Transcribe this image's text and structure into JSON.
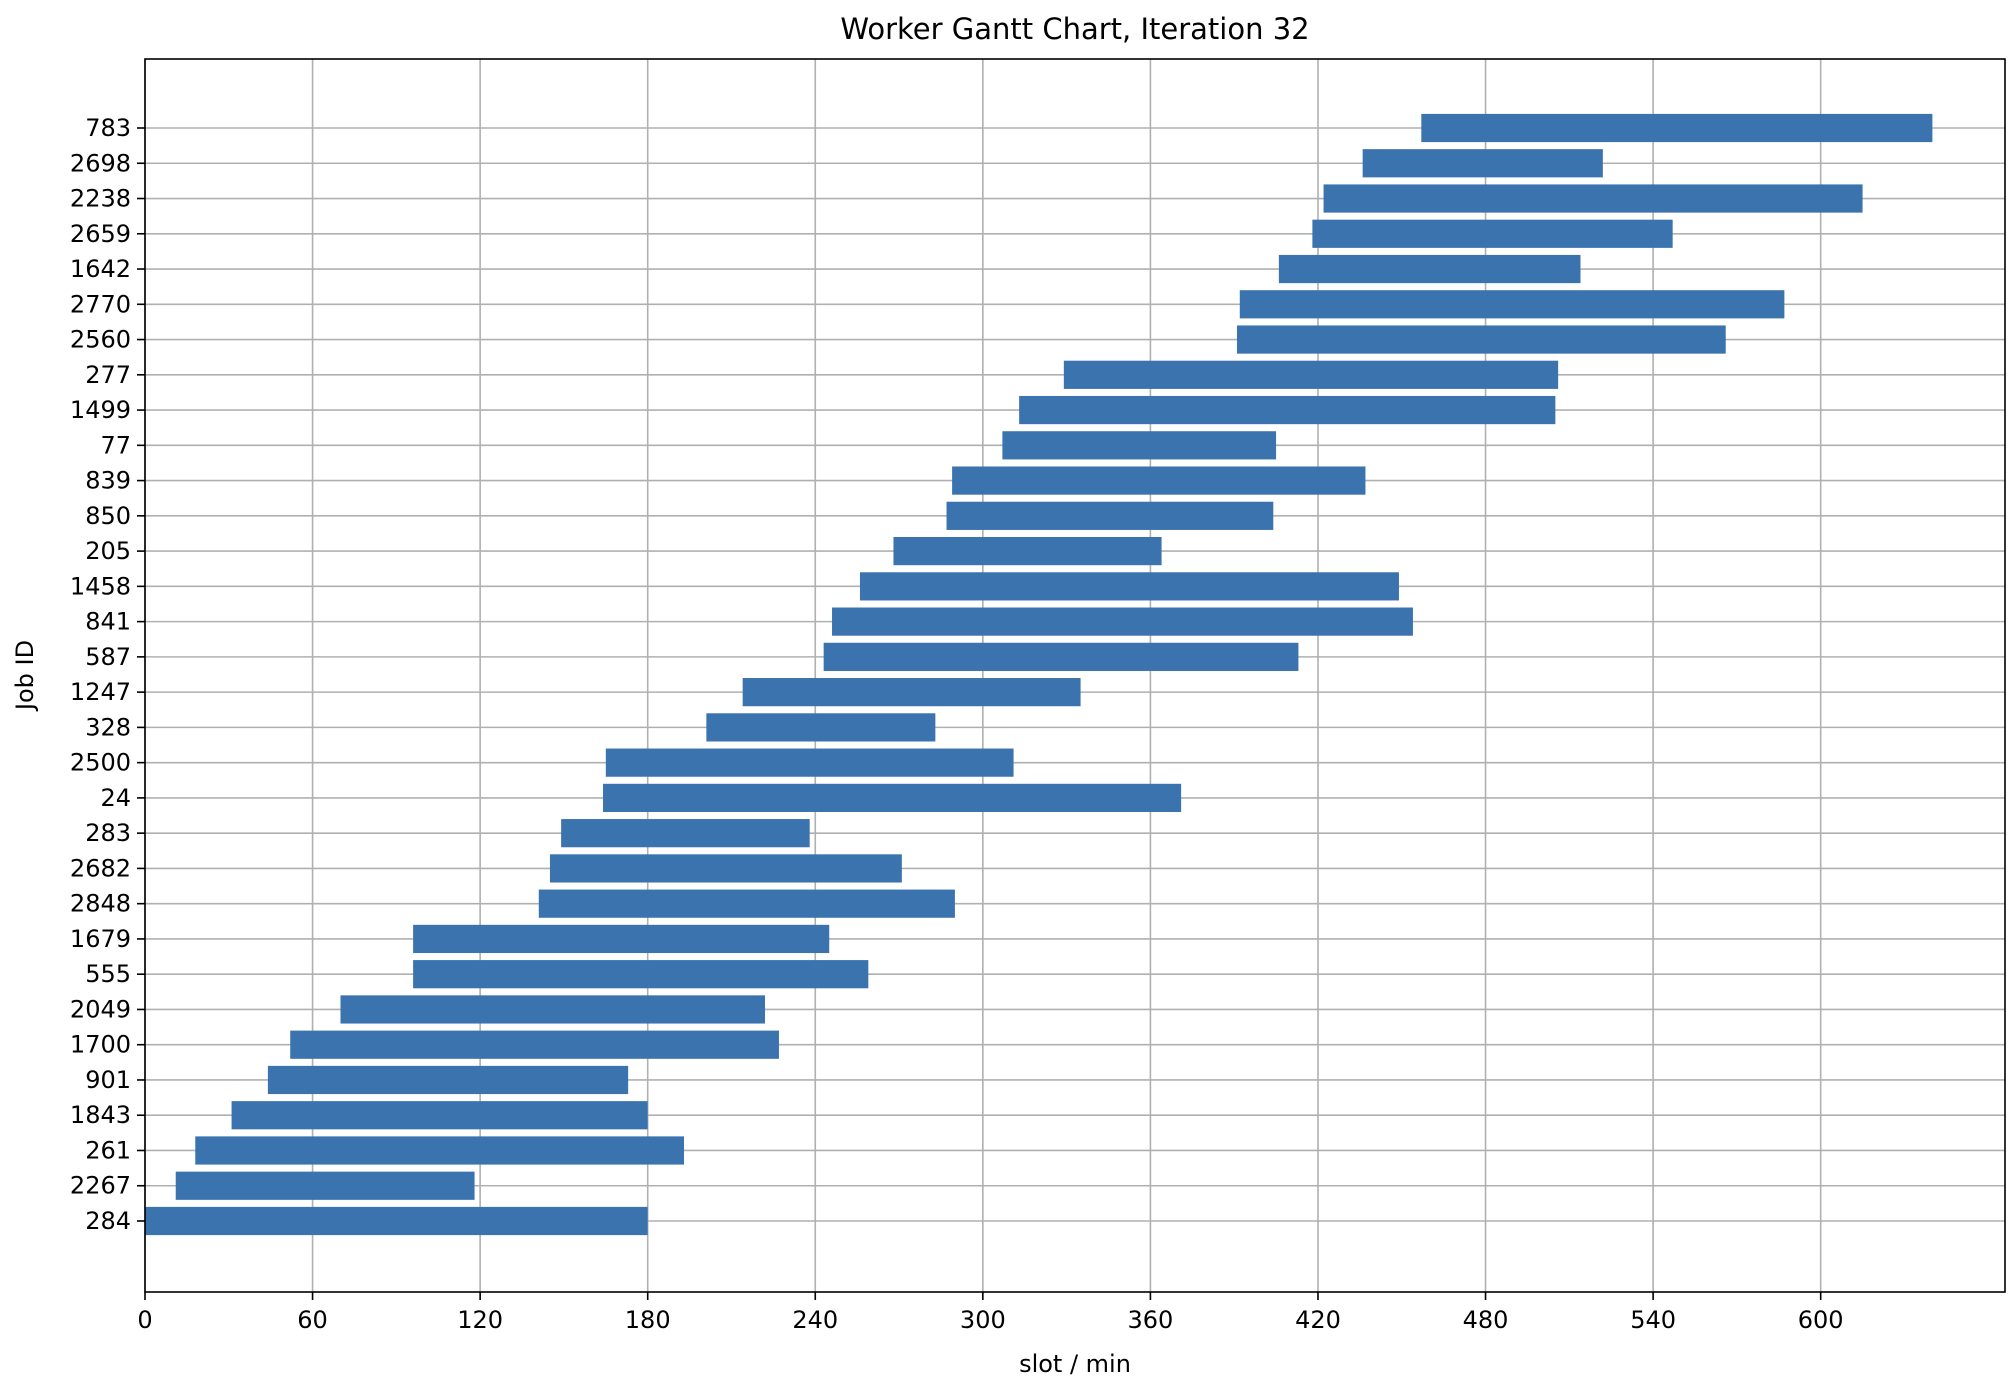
{
  "chart_data": {
    "type": "bar",
    "orientation": "horizontal",
    "title": "Worker Gantt Chart, Iteration 32",
    "xlabel": "slot / min",
    "ylabel": "Job ID",
    "xlim": [
      0,
      666
    ],
    "xticks": [
      0,
      60,
      120,
      180,
      240,
      300,
      360,
      420,
      480,
      540,
      600
    ],
    "grid": true,
    "bar_color": "#3b73af",
    "categories": [
      "284",
      "2267",
      "261",
      "1843",
      "901",
      "1700",
      "2049",
      "555",
      "1679",
      "2848",
      "2682",
      "283",
      "24",
      "2500",
      "328",
      "1247",
      "587",
      "841",
      "1458",
      "205",
      "850",
      "839",
      "77",
      "1499",
      "277",
      "2560",
      "2770",
      "1642",
      "2659",
      "2238",
      "2698",
      "783"
    ],
    "start": [
      0,
      11,
      18,
      31,
      44,
      52,
      70,
      96,
      96,
      141,
      145,
      149,
      164,
      165,
      201,
      214,
      243,
      246,
      256,
      268,
      287,
      289,
      307,
      313,
      329,
      391,
      392,
      406,
      418,
      422,
      436,
      457
    ],
    "end": [
      180,
      118,
      193,
      180,
      173,
      227,
      222,
      259,
      245,
      290,
      271,
      238,
      371,
      311,
      283,
      335,
      413,
      454,
      449,
      364,
      404,
      437,
      405,
      505,
      506,
      566,
      587,
      514,
      547,
      615,
      522,
      640
    ]
  }
}
